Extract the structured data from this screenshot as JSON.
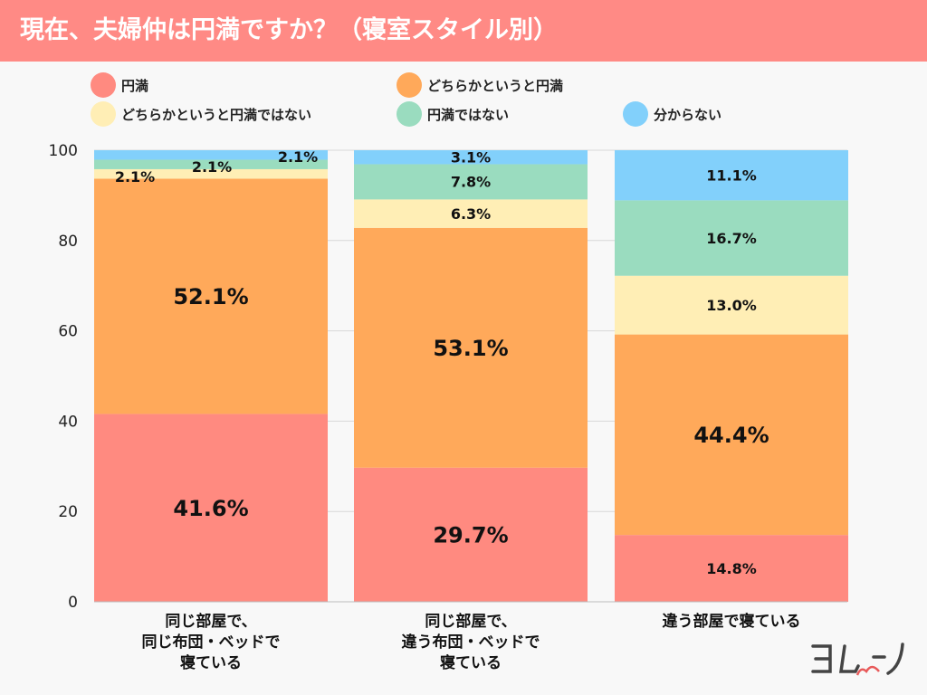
{
  "title": "現在、夫婦仲は円満ですか？（寝室スタイル別）",
  "chart_data": {
    "type": "bar",
    "stacked": true,
    "title": "現在、夫婦仲は円満ですか？（寝室スタイル別）",
    "categories": [
      "同じ部屋で、\n同じ布団・ベッドで\n寝ている",
      "同じ部屋で、\n違う布団・ベッドで\n寝ている",
      "違う部屋で寝ている"
    ],
    "ylim": [
      0,
      100
    ],
    "yticks": [
      "0",
      "20",
      "40",
      "60",
      "80",
      "100"
    ],
    "grid": true,
    "legend": "top",
    "series": [
      {
        "name": "円満",
        "color": "#ff8a80",
        "values": [
          41.6,
          29.7,
          14.8
        ]
      },
      {
        "name": "どちらかというと円満",
        "color": "#ffa95a",
        "values": [
          52.1,
          53.1,
          44.4
        ]
      },
      {
        "name": "どちらかというと円満ではない",
        "color": "#ffeeb5",
        "values": [
          2.1,
          6.3,
          13.0
        ]
      },
      {
        "name": "円満ではない",
        "color": "#9adcbf",
        "values": [
          2.1,
          7.8,
          16.7
        ]
      },
      {
        "name": "分からない",
        "color": "#82d0fb",
        "values": [
          2.1,
          3.1,
          11.1
        ]
      }
    ]
  },
  "logo": "ヨムーノ"
}
